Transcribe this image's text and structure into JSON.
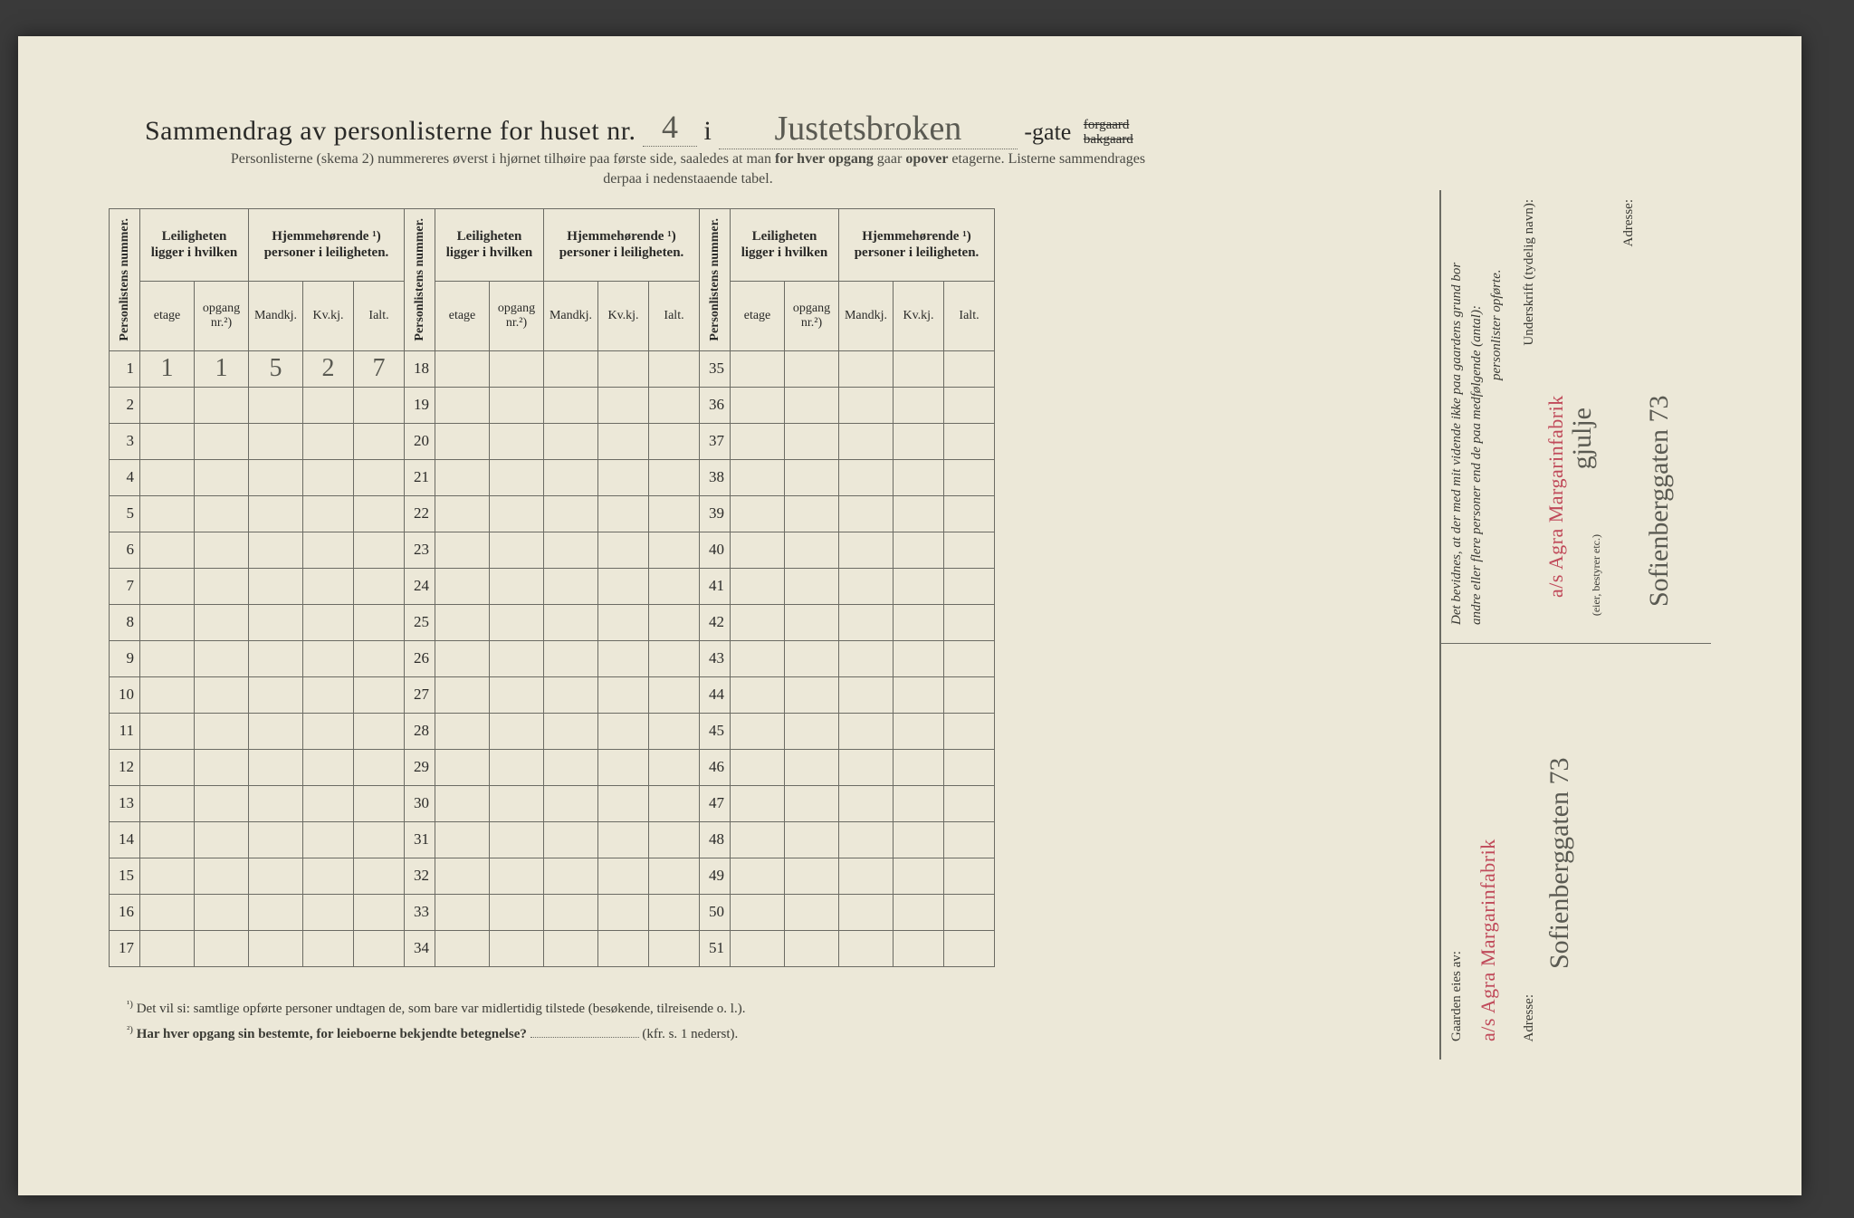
{
  "title": {
    "prefix": "Sammendrag av personlisterne for huset nr.",
    "house_nr": "4",
    "i": "i",
    "street": "Justetsbroken",
    "gate": "-gate",
    "forgaard": "forgaard",
    "bakgaard": "bakgaard"
  },
  "subtitle": {
    "l1a": "Personlisterne (skema 2) nummereres øverst i hjørnet tilhøire paa første side, saaledes at man ",
    "l1b": "for hver opgang",
    "l1c": " gaar ",
    "l1d": "opover",
    "l1e": " etagerne.   Listerne sammendrages",
    "l2": "derpaa i nedenstaaende tabel."
  },
  "headers": {
    "personlistens_nummer": "Personlistens nummer.",
    "leiligheten": "Leiligheten ligger i hvilken",
    "hjemmehorende": "Hjemmehørende ¹) personer i leiligheten.",
    "etage": "etage",
    "opgang": "opgang nr.²)",
    "mandkj": "Mandkj.",
    "kvkj": "Kv.kj.",
    "ialt": "Ialt."
  },
  "row_values": {
    "r1": {
      "etage": "1",
      "opgang": "1",
      "m": "5",
      "k": "2",
      "i": "7"
    }
  },
  "panel_start": [
    1,
    18,
    35
  ],
  "panel_rows": 17,
  "footnotes": {
    "f1_sup": "¹)",
    "f1": "Det vil si: samtlige opførte personer undtagen de, som bare var midlertidig tilstede (besøkende, tilreisende o. l.).",
    "f2_sup": "²)",
    "f2a": "Har hver opgang sin bestemte, for leieboerne bekjendte betegnelse?",
    "f2b": "(kfr. s. 1 nederst)."
  },
  "right": {
    "gaarden_eies_av": "Gaarden eies av:",
    "stamp": "a/s Agra Margarinfabrik",
    "adresse_label": "Adresse:",
    "adresse_value": "Sofienberggaten 73",
    "bevidnes_l1": "Det bevidnes, at der med mit vidende ikke paa gaardens grund bor",
    "bevidnes_l2": "andre eller flere personer end de paa medfølgende (antal):",
    "bevidnes_l3": "personlister opførte.",
    "underskrift": "Underskrift (tydelig navn):",
    "eier_bestyrer": "(eier, bestyrer etc.)",
    "stamp2": "a/s Agra Margarinfabrik",
    "sig2": "gjulje",
    "adresse2": "Sofienberggaten 73"
  },
  "colors": {
    "paper": "#ece8d8",
    "ink": "#2a2a28",
    "faint_ink": "#5a5a52",
    "rule": "#6b6b63",
    "stamp": "#c04a5a"
  }
}
